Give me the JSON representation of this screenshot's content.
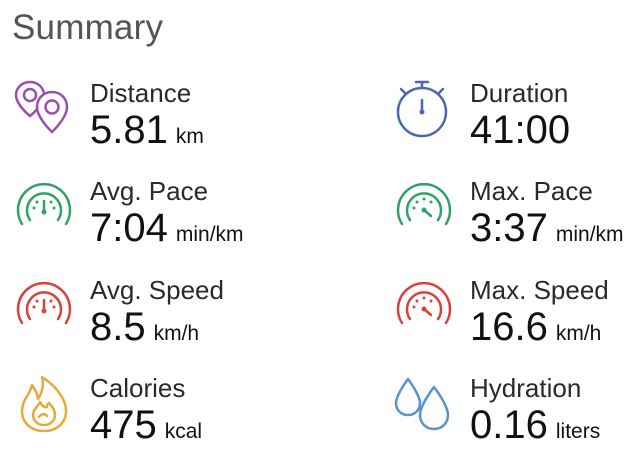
{
  "summary": {
    "title": "Summary",
    "colors": {
      "distance": "#9b4fb0",
      "duration": "#4a67b1",
      "pace": "#2fa365",
      "speed": "#d9423b",
      "calories": "#eba83a",
      "hydration": "#5793cf"
    },
    "stats": {
      "distance": {
        "label": "Distance",
        "value": "5.81",
        "unit": "km",
        "icon": "map-pins-icon"
      },
      "duration": {
        "label": "Duration",
        "value": "41:00",
        "unit": "",
        "icon": "stopwatch-icon"
      },
      "avg_pace": {
        "label": "Avg. Pace",
        "value": "7:04",
        "unit": "min/km",
        "icon": "pace-gauge-icon"
      },
      "max_pace": {
        "label": "Max. Pace",
        "value": "3:37",
        "unit": "min/km",
        "icon": "pace-gauge-icon"
      },
      "avg_speed": {
        "label": "Avg. Speed",
        "value": "8.5",
        "unit": "km/h",
        "icon": "speed-gauge-icon"
      },
      "max_speed": {
        "label": "Max. Speed",
        "value": "16.6",
        "unit": "km/h",
        "icon": "speed-gauge-icon"
      },
      "calories": {
        "label": "Calories",
        "value": "475",
        "unit": "kcal",
        "icon": "flame-icon"
      },
      "hydration": {
        "label": "Hydration",
        "value": "0.16",
        "unit": "liters",
        "icon": "water-drops-icon"
      }
    }
  }
}
